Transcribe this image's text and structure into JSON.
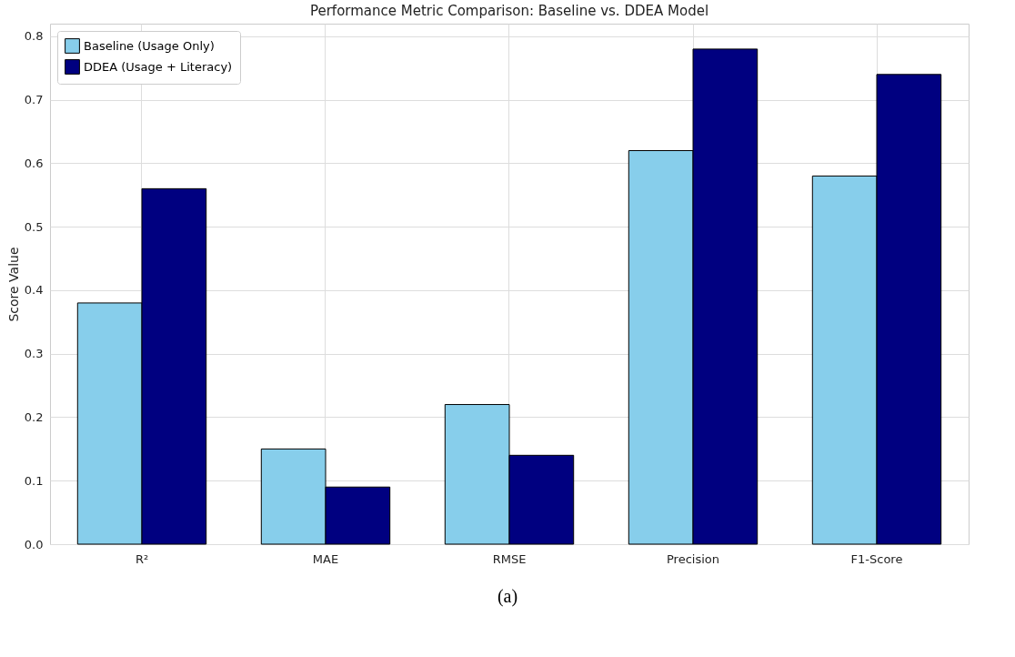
{
  "chart_data": {
    "type": "bar",
    "title": "Performance Metric Comparison: Baseline vs. DDEA Model",
    "ylabel": "Score Value",
    "categories": [
      "R²",
      "MAE",
      "RMSE",
      "Precision",
      "F1-Score"
    ],
    "series": [
      {
        "name": "Baseline (Usage Only)",
        "color": "#87ceeb",
        "values": [
          0.38,
          0.15,
          0.22,
          0.62,
          0.58
        ]
      },
      {
        "name": "DDEA (Usage + Literacy)",
        "color": "#000080",
        "values": [
          0.56,
          0.09,
          0.14,
          0.78,
          0.74
        ]
      }
    ],
    "ylim": [
      0,
      0.82
    ],
    "yticks": [
      {
        "value": 0,
        "label": "0.0"
      },
      0.1,
      0.2,
      0.3,
      0.4,
      0.5,
      0.6,
      0.7,
      0.8
    ],
    "grid": true,
    "legend": "top left",
    "annotations": [
      "(a)"
    ]
  }
}
